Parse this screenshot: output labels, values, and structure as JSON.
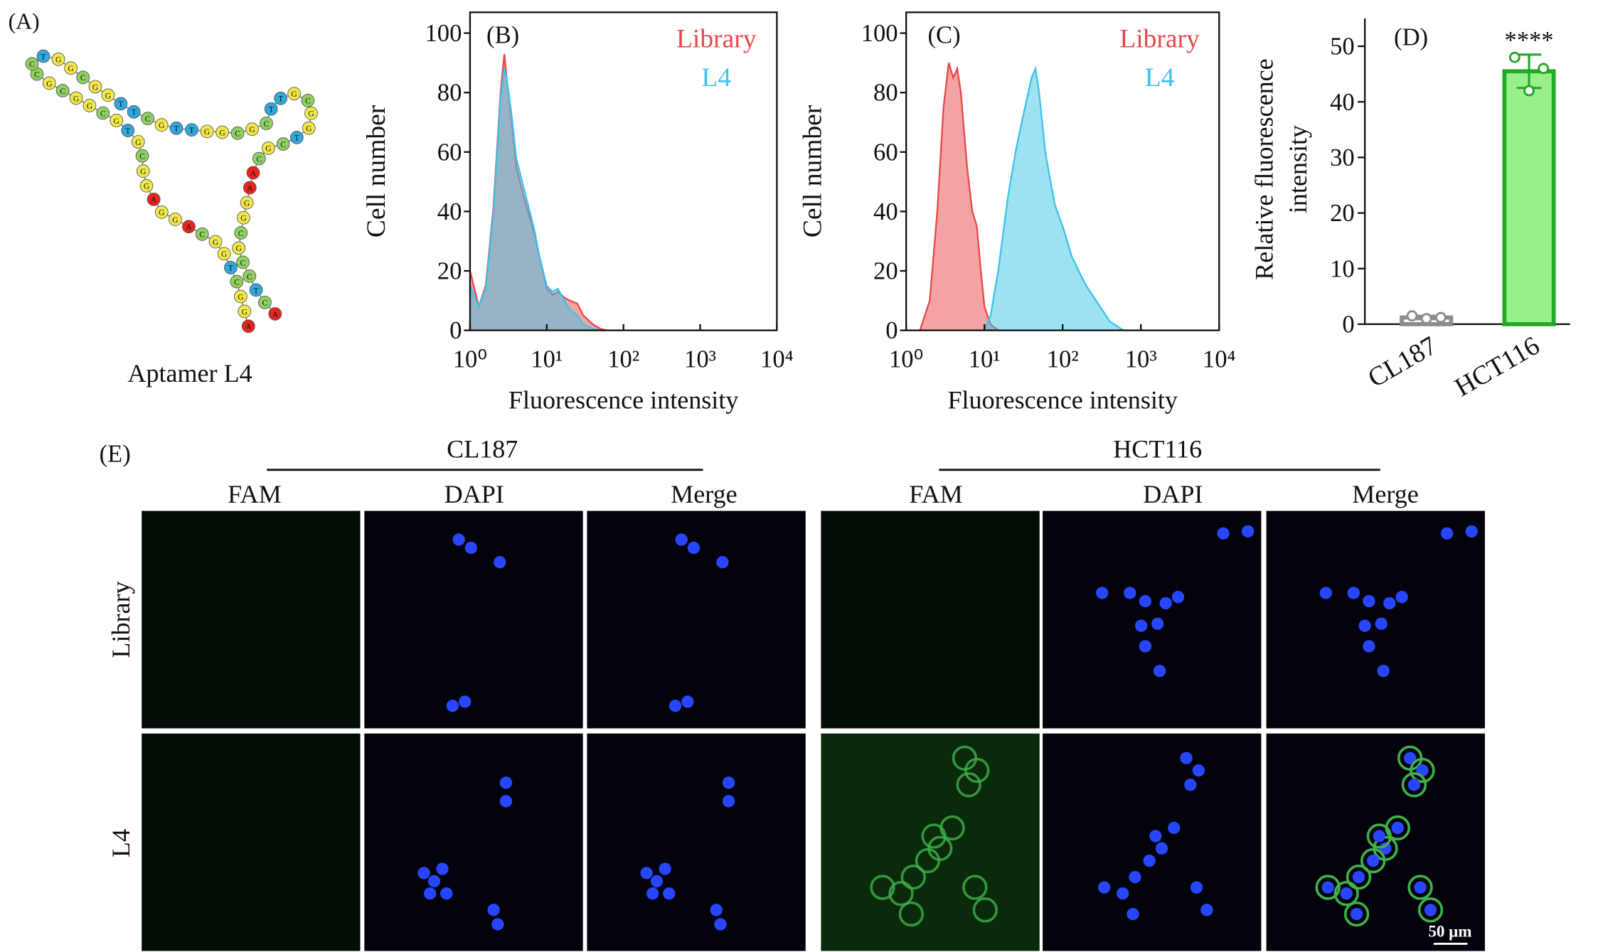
{
  "panel_a": {
    "label": "(A)",
    "caption": "Aptamer L4",
    "sequence": [
      "A",
      "G",
      "G",
      "C",
      "T",
      "G",
      "G",
      "C",
      "A",
      "G",
      "G",
      "A",
      "G",
      "G",
      "C",
      "G",
      "T",
      "G",
      "C",
      "G",
      "G",
      "C",
      "G",
      "C",
      "C",
      "T",
      "G",
      "G",
      "C",
      "G",
      "G",
      "T",
      "T",
      "C",
      "G",
      "T",
      "T",
      "G",
      "G",
      "C",
      "G",
      "C",
      "T",
      "T",
      "G",
      "C",
      "G",
      "G",
      "T",
      "C",
      "G",
      "C",
      "A",
      "A",
      "G",
      "G",
      "C",
      "G",
      "C",
      "C",
      "T",
      "C",
      "A"
    ],
    "base_colors": {
      "A": "#e8241c",
      "T": "#2fa8dc",
      "G": "#f0e84a",
      "C": "#8fd060"
    }
  },
  "chart_data": [
    {
      "type": "area",
      "panel_label": "(B)",
      "xlabel": "Fluorescence intensity",
      "ylabel": "Cell number",
      "xscale": "log",
      "xlim": [
        1,
        10000
      ],
      "xticks": [
        {
          "value": 1,
          "label": "10⁰"
        },
        {
          "value": 10,
          "label": "10¹"
        },
        {
          "value": 100,
          "label": "10²"
        },
        {
          "value": 1000,
          "label": "10³"
        },
        {
          "value": 10000,
          "label": "10⁴"
        }
      ],
      "ylim": [
        0,
        107
      ],
      "yticks": [
        0,
        20,
        40,
        60,
        80,
        100
      ],
      "legend": "upper right",
      "series": [
        {
          "name": "Library",
          "color": "#e8474a",
          "x": [
            1,
            1.3,
            1.6,
            2,
            2.5,
            2.8,
            3,
            3.5,
            4,
            5,
            6,
            7,
            8,
            10,
            12,
            14,
            17,
            20,
            25,
            30,
            40,
            50,
            60
          ],
          "values": [
            20,
            8,
            15,
            40,
            80,
            93,
            85,
            70,
            55,
            45,
            38,
            32,
            25,
            14,
            12,
            13,
            11,
            10,
            9,
            5,
            2,
            0.5,
            0
          ]
        },
        {
          "name": "L4",
          "color": "#3cc3e8",
          "x": [
            1,
            1.3,
            1.6,
            2,
            2.5,
            2.8,
            3,
            3.5,
            4,
            5,
            6,
            7,
            8,
            10,
            12,
            14,
            17,
            20,
            25,
            30,
            40,
            50,
            60
          ],
          "values": [
            15,
            8,
            14,
            38,
            78,
            88,
            85,
            72,
            58,
            48,
            40,
            33,
            25,
            15,
            13,
            14,
            10,
            7,
            5,
            2,
            0.5,
            0,
            0
          ]
        }
      ]
    },
    {
      "type": "area",
      "panel_label": "(C)",
      "xlabel": "Fluorescence intensity",
      "ylabel": "Cell number",
      "xscale": "log",
      "xlim": [
        1,
        10000
      ],
      "xticks": [
        {
          "value": 1,
          "label": "10⁰"
        },
        {
          "value": 10,
          "label": "10¹"
        },
        {
          "value": 100,
          "label": "10²"
        },
        {
          "value": 1000,
          "label": "10³"
        },
        {
          "value": 10000,
          "label": "10⁴"
        }
      ],
      "ylim": [
        0,
        107
      ],
      "yticks": [
        0,
        20,
        40,
        60,
        80,
        100
      ],
      "legend": "upper right",
      "series": [
        {
          "name": "Library",
          "color": "#e8474a",
          "x": [
            1.5,
            2,
            2.5,
            3,
            3.5,
            4,
            4.5,
            5,
            6,
            7,
            8,
            9,
            10,
            12,
            15
          ],
          "values": [
            0,
            10,
            40,
            75,
            90,
            85,
            88,
            80,
            55,
            40,
            35,
            20,
            8,
            2,
            0
          ]
        },
        {
          "name": "L4",
          "color": "#3cc3e8",
          "x": [
            10,
            12,
            15,
            20,
            25,
            30,
            35,
            40,
            45,
            50,
            60,
            70,
            80,
            100,
            130,
            160,
            200,
            300,
            400,
            600
          ],
          "values": [
            0,
            5,
            20,
            45,
            60,
            70,
            78,
            85,
            88,
            80,
            60,
            50,
            42,
            35,
            25,
            20,
            15,
            8,
            3,
            0
          ]
        }
      ]
    },
    {
      "type": "bar",
      "panel_label": "(D)",
      "ylabel": [
        "Relative fluorescence",
        "intensity"
      ],
      "categories": [
        "CL187",
        "HCT116"
      ],
      "values": [
        1.2,
        45.5
      ],
      "errors": [
        0.3,
        3
      ],
      "points": [
        [
          1.5,
          1.0,
          1.2
        ],
        [
          48,
          42,
          46
        ]
      ],
      "colors": [
        "#ffffff",
        "#98f08c"
      ],
      "edgecolors": [
        "#8c8c8c",
        "#22aa22"
      ],
      "ylim": [
        0,
        55
      ],
      "yticks": [
        0,
        10,
        20,
        30,
        40,
        50
      ],
      "annotations": [
        {
          "text": "****",
          "x": "HCT116"
        }
      ]
    }
  ],
  "panel_e": {
    "label": "(E)",
    "groups": [
      "CL187",
      "HCT116"
    ],
    "channels": [
      "FAM",
      "DAPI",
      "Merge"
    ],
    "rows": [
      "Library",
      "L4"
    ],
    "scale_bar": "50 μm"
  }
}
